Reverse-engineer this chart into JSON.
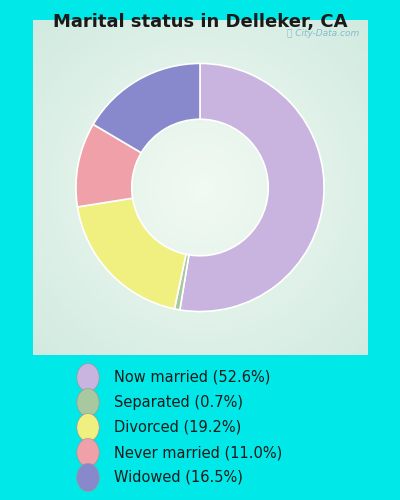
{
  "title": "Marital status in Delleker, CA",
  "categories": [
    "Now married",
    "Separated",
    "Divorced",
    "Never married",
    "Widowed"
  ],
  "values": [
    52.6,
    0.7,
    19.2,
    11.0,
    16.5
  ],
  "colors": [
    "#c9b4e0",
    "#a8c8a0",
    "#f0f080",
    "#f0a0a8",
    "#8888cc"
  ],
  "legend_labels": [
    "Now married (52.6%)",
    "Separated (0.7%)",
    "Divorced (19.2%)",
    "Never married (11.0%)",
    "Widowed (16.5%)"
  ],
  "bg_outer": "#00e8e8",
  "bg_chart_color": "#d0e8d8",
  "title_fontsize": 13,
  "startangle": 90,
  "donut_width": 0.45,
  "legend_fontsize": 10.5
}
